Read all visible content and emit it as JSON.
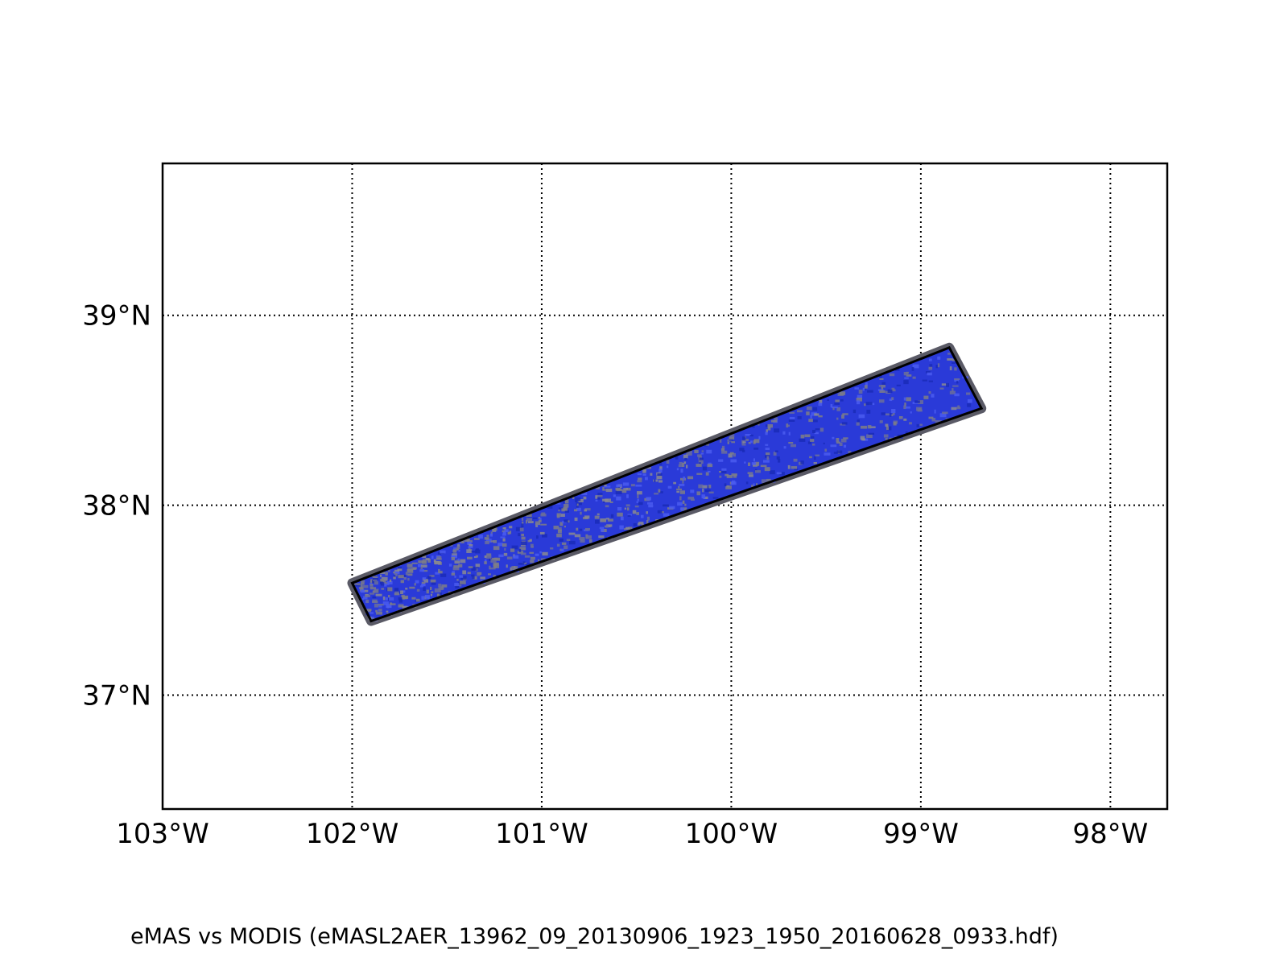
{
  "map": {
    "lon_range": [
      -103.0,
      -97.7
    ],
    "lat_range": [
      36.4,
      39.8
    ],
    "lon_ticks": [
      {
        "value": -103,
        "label": "103°W"
      },
      {
        "value": -102,
        "label": "102°W"
      },
      {
        "value": -101,
        "label": "101°W"
      },
      {
        "value": -100,
        "label": "100°W"
      },
      {
        "value": -99,
        "label": "99°W"
      },
      {
        "value": -98,
        "label": "98°W"
      }
    ],
    "lat_ticks": [
      {
        "value": 39,
        "label": "39°N"
      },
      {
        "value": 38,
        "label": "38°N"
      },
      {
        "value": 37,
        "label": "37°N"
      }
    ],
    "swath": {
      "corners_lonlat": [
        [
          -102.0,
          37.59
        ],
        [
          -98.85,
          38.83
        ],
        [
          -98.68,
          38.51
        ],
        [
          -101.9,
          37.39
        ]
      ],
      "fill_color": "#2a3ad8",
      "edge_color": "#5a5a66",
      "outline_color": "#000000",
      "patch_color": "#7e7e86"
    },
    "grid_style": "dotted"
  },
  "caption": "eMAS vs MODIS (eMASL2AER_13962_09_20130906_1923_1950_20160628_0933.hdf)"
}
